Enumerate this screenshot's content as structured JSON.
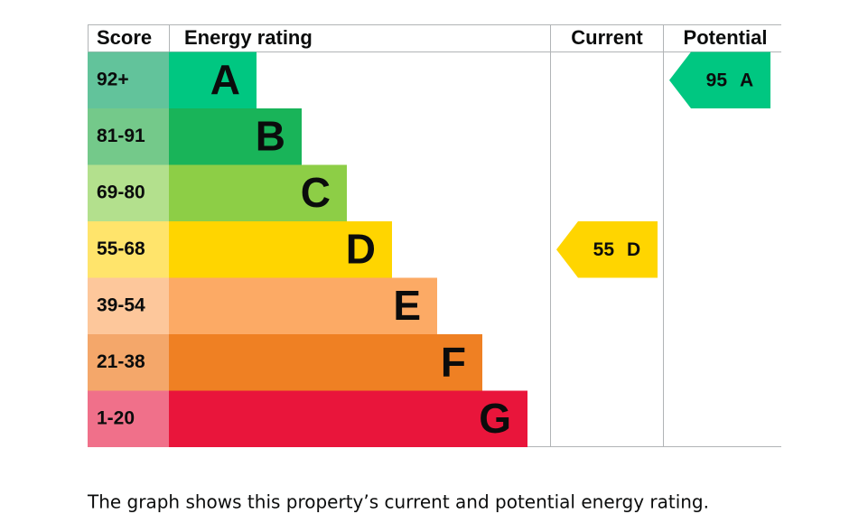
{
  "headers": [
    "Score",
    "Energy rating",
    "Current",
    "Potential"
  ],
  "bands": [
    {
      "score": "92+",
      "letter": "A",
      "color": "#00c781",
      "score_color": "#62c39b"
    },
    {
      "score": "81-91",
      "letter": "B",
      "color": "#19b459",
      "score_color": "#74c98a"
    },
    {
      "score": "69-80",
      "letter": "C",
      "color": "#8dce46",
      "score_color": "#b3e08d"
    },
    {
      "score": "55-68",
      "letter": "D",
      "color": "#ffd500",
      "score_color": "#ffe46b"
    },
    {
      "score": "39-54",
      "letter": "E",
      "color": "#fcaa65",
      "score_color": "#fdc79b"
    },
    {
      "score": "21-38",
      "letter": "F",
      "color": "#ef8023",
      "score_color": "#f4a76a"
    },
    {
      "score": "1-20",
      "letter": "G",
      "color": "#e9153b",
      "score_color": "#f0708a"
    }
  ],
  "current": {
    "value": 55,
    "letter": "D"
  },
  "potential": {
    "value": 95,
    "letter": "A"
  },
  "caption": "The graph shows this property’s current and potential energy rating."
}
